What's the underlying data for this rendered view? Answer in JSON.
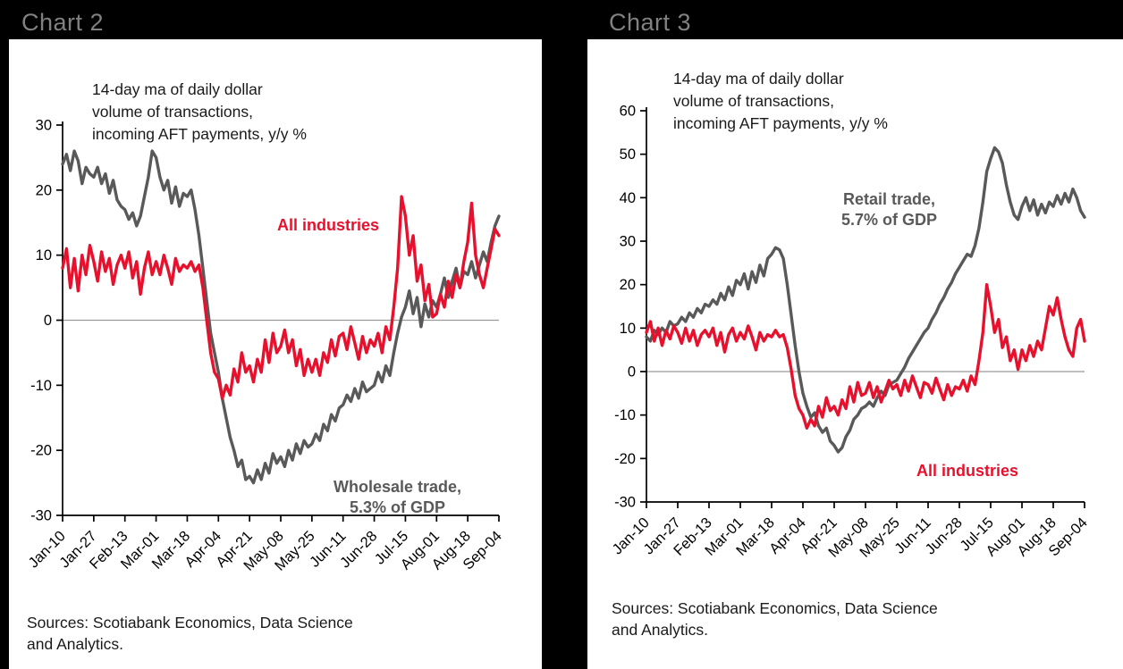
{
  "page": {
    "background": "#000000",
    "panel_background": "#ffffff",
    "header_text_color": "#818181"
  },
  "chart_data": [
    {
      "type": "line",
      "title": "Chart 2",
      "annotation": "14-day  ma of daily dollar\nvolume of transactions,\nincoming AFT payments, y/y %",
      "sources": "Sources: Scotiabank Economics, Data Science\nand Analytics.",
      "ylim": [
        -30,
        30
      ],
      "ytick_step": 10,
      "grid": false,
      "x_tick_labels": [
        "Jan-10",
        "Jan-27",
        "Feb-13",
        "Mar-01",
        "Mar-18",
        "Apr-04",
        "Apr-21",
        "May-08",
        "May-25",
        "Jun-11",
        "Jun-28",
        "Jul-15",
        "Aug-01",
        "Aug-18",
        "Sep-04"
      ],
      "series": [
        {
          "name": "Wholesale trade, 5.3% of GDP",
          "label": "Wholesale trade,\n5.3%  of GDP",
          "color": "#595959",
          "values": [
            24,
            25.5,
            23,
            26,
            24.5,
            21,
            23.5,
            22.5,
            22,
            23.5,
            21,
            22.5,
            19.5,
            21.5,
            18.5,
            17.5,
            17,
            15.5,
            16.5,
            14.5,
            16,
            19,
            22,
            26,
            25,
            22,
            20,
            21.5,
            18,
            20.5,
            17.5,
            19.5,
            19,
            20,
            17,
            13,
            8,
            3,
            -2,
            -5,
            -8,
            -12,
            -15,
            -18,
            -20,
            -22.5,
            -21.5,
            -24.5,
            -24,
            -25,
            -23,
            -24.5,
            -22,
            -23.5,
            -20.5,
            -22,
            -21,
            -22.5,
            -20,
            -21.5,
            -19,
            -20.5,
            -18.5,
            -19.5,
            -19,
            -17.5,
            -18.5,
            -16,
            -17,
            -14.5,
            -15.5,
            -13.5,
            -13,
            -11.5,
            -12.5,
            -10.5,
            -12,
            -9.5,
            -11,
            -10.5,
            -10,
            -8,
            -9.5,
            -7,
            -8.5,
            -5,
            -2,
            0.5,
            2,
            4.5,
            1,
            3.5,
            -1,
            2.5,
            0.5,
            3,
            2,
            4,
            6.5,
            3.5,
            6,
            8,
            5,
            7.5,
            7,
            9,
            6.5,
            8.5,
            10.5,
            9,
            12,
            14.5,
            16
          ]
        },
        {
          "name": "All industries",
          "label": "All industries",
          "color": "#e8112d",
          "values": [
            8,
            11,
            5,
            9.5,
            4.5,
            10,
            7,
            11.5,
            9,
            6,
            10.5,
            7.5,
            9.5,
            5.5,
            8.5,
            10,
            8,
            10.5,
            6.5,
            9,
            4,
            8,
            10.5,
            7,
            9,
            7,
            10,
            8,
            5.5,
            9.5,
            7.5,
            8.5,
            8,
            9,
            7.5,
            8.5,
            5,
            0,
            -5,
            -8,
            -9,
            -12,
            -10,
            -11.5,
            -7.5,
            -9.5,
            -5,
            -8,
            -7,
            -9.5,
            -6,
            -8,
            -3,
            -6.5,
            -2,
            -5,
            -4,
            -1.5,
            -5,
            -3,
            -7,
            -4.5,
            -8.5,
            -6,
            -8,
            -6,
            -8.5,
            -5,
            -6.5,
            -3,
            -5.5,
            -2.5,
            -2,
            -4.5,
            -1,
            -3.5,
            -6,
            -2.5,
            -5,
            -3,
            -4,
            -2,
            -5,
            -1,
            -3,
            2,
            8,
            19,
            16,
            10,
            13,
            6,
            8.5,
            3,
            5.5,
            0.5,
            1,
            4,
            2,
            6,
            3.5,
            7,
            5,
            9,
            12,
            18,
            10,
            7,
            5,
            8,
            11,
            14,
            13
          ]
        }
      ]
    },
    {
      "type": "line",
      "title": "Chart 3",
      "annotation": "14-day  ma of daily dollar\nvolume of transactions,\nincoming AFT payments, y/y %",
      "sources": "Sources: Scotiabank Economics, Data Science\nand Analytics.",
      "ylim": [
        -30,
        60
      ],
      "ytick_step": 10,
      "grid": false,
      "x_tick_labels": [
        "Jan-10",
        "Jan-27",
        "Feb-13",
        "Mar-01",
        "Mar-18",
        "Apr-04",
        "Apr-21",
        "May-08",
        "May-25",
        "Jun-11",
        "Jun-28",
        "Jul-15",
        "Aug-01",
        "Aug-18",
        "Sep-04"
      ],
      "series": [
        {
          "name": "Retail trade, 5.7% of GDP",
          "label": "Retail trade,\n5.7%  of GDP",
          "color": "#595959",
          "values": [
            8,
            7,
            9.5,
            8.5,
            10,
            9,
            11.5,
            10.5,
            11,
            12.5,
            11.5,
            13.5,
            12.5,
            14.5,
            13.5,
            15.5,
            15,
            16.5,
            15.5,
            18,
            16.5,
            19.5,
            17.5,
            21,
            20,
            22.5,
            19,
            23,
            20.5,
            24.5,
            22,
            26,
            27,
            28.5,
            28,
            26,
            20,
            13,
            6,
            0,
            -5,
            -8,
            -10.5,
            -9.5,
            -12.5,
            -14,
            -13,
            -16,
            -17,
            -18.5,
            -17.5,
            -15,
            -13.5,
            -11,
            -10,
            -8.5,
            -8,
            -7,
            -8,
            -6,
            -4.5,
            -5.5,
            -3,
            -2.5,
            -2,
            -0.5,
            1,
            3,
            4.5,
            6,
            7.5,
            9,
            10,
            12,
            13.5,
            15.5,
            17,
            19,
            20.5,
            22.5,
            24,
            25.5,
            27,
            26.5,
            29,
            33,
            39,
            46,
            49,
            51.5,
            50.5,
            48,
            43,
            39,
            36,
            35,
            38,
            40,
            37,
            39.5,
            36,
            38.5,
            36.5,
            39,
            38,
            40.5,
            38.5,
            41,
            39,
            42,
            40,
            37,
            35.5
          ]
        },
        {
          "name": "All industries",
          "label": "All industries",
          "color": "#e8112d",
          "values": [
            9,
            11.5,
            7,
            10,
            6,
            9.5,
            7.5,
            10.5,
            9,
            6.5,
            10,
            7,
            9.5,
            6,
            8.5,
            9.5,
            8,
            10,
            6,
            9,
            4.5,
            8.5,
            10,
            7,
            9,
            7.5,
            10.5,
            8,
            5,
            9,
            7,
            8.5,
            8,
            9.5,
            8,
            8.5,
            5.5,
            0.5,
            -5.5,
            -8.5,
            -10,
            -13,
            -11,
            -12.5,
            -8,
            -10.5,
            -6,
            -9,
            -8,
            -10,
            -6.5,
            -8.5,
            -3.5,
            -7,
            -2.5,
            -5.5,
            -5,
            -2.5,
            -6,
            -3.5,
            -7,
            -4.5,
            -2,
            -4,
            -3,
            -5.5,
            -2,
            -4.5,
            -1,
            -3.5,
            -6,
            -2.5,
            -3,
            -5,
            -1.5,
            -4,
            -6.5,
            -3,
            -5.5,
            -3.5,
            -4,
            -2,
            -4.5,
            -1,
            -3,
            2.5,
            9,
            20,
            15,
            9,
            12,
            5.5,
            8,
            2.5,
            5,
            0.5,
            5,
            2.5,
            6,
            3.5,
            7,
            5,
            10,
            15,
            13,
            17,
            12,
            8,
            5,
            3.5,
            10,
            12,
            7
          ]
        }
      ]
    }
  ]
}
